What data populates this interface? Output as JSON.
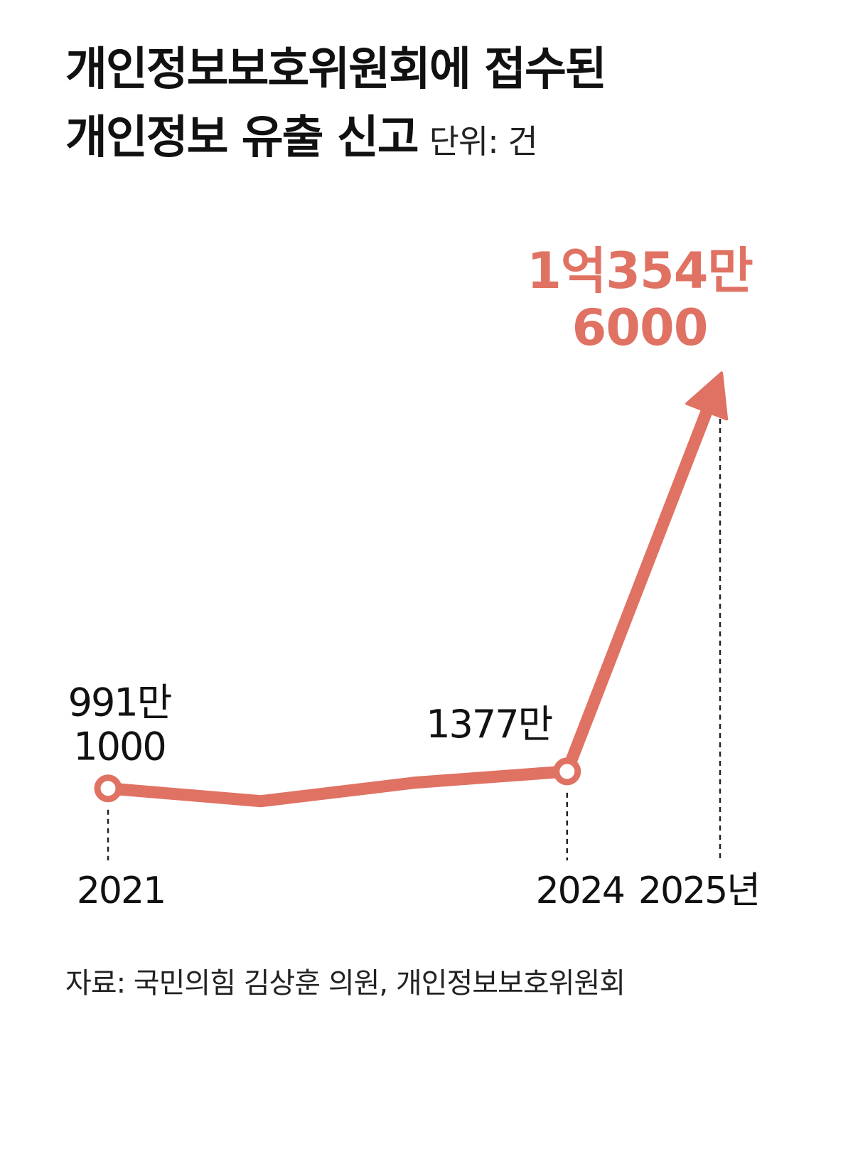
{
  "title_lines": [
    "개인정보보호위원회에 접수된",
    "개인정보 유출 신고"
  ],
  "unit": "단위: 건",
  "source": "자료: 국민의힘 김상훈 의원, 개인정보보호위원회",
  "colors": {
    "line": "#E07263",
    "highlight_text": "#E07263",
    "text": "#111111",
    "guide": "#222222",
    "background": "#FFFFFF"
  },
  "chart_data": {
    "type": "line",
    "x": [
      2021,
      2022,
      2023,
      2024,
      2025
    ],
    "values": [
      9911000,
      7000000,
      11200000,
      13770000,
      103546000
    ],
    "xlim": [
      2021,
      2025
    ],
    "ylim": [
      0,
      103546000
    ],
    "grid": false,
    "legend": "none",
    "end_marker": "arrow",
    "x_tick_labels": [
      {
        "x": 2021,
        "label": "2021"
      },
      {
        "x": 2024,
        "label": "2024"
      },
      {
        "x": 2025,
        "label": "2025년"
      }
    ],
    "data_labels": [
      {
        "x": 2021,
        "lines": [
          "991만",
          "1000"
        ],
        "style": "normal"
      },
      {
        "x": 2024,
        "lines": [
          "1377만"
        ],
        "style": "normal"
      },
      {
        "x": 2025,
        "lines": [
          "1억354만",
          "6000"
        ],
        "style": "highlight"
      }
    ]
  }
}
